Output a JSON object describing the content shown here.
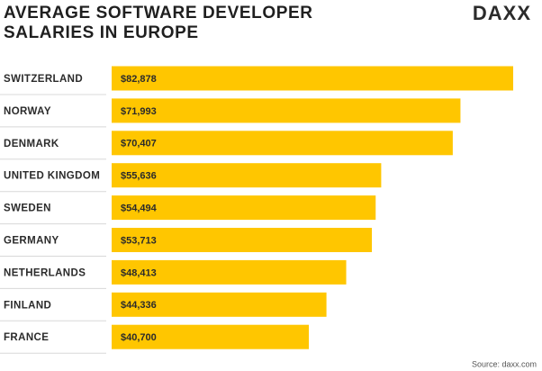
{
  "chart_data": {
    "type": "bar",
    "orientation": "horizontal",
    "title": "AVERAGE SOFTWARE DEVELOPER SALARIES IN EUROPE",
    "logo": "DAXX",
    "source": "Source: daxx.com",
    "categories": [
      "SWITZERLAND",
      "NORWAY",
      "DENMARK",
      "UNITED KINGDOM",
      "SWEDEN",
      "GERMANY",
      "NETHERLANDS",
      "FINLAND",
      "FRANCE"
    ],
    "values": [
      82878,
      71993,
      70407,
      55636,
      54494,
      53713,
      48413,
      44336,
      40700
    ],
    "value_labels": [
      "$82,878",
      "$71,993",
      "$70,407",
      "$55,636",
      "$54,494",
      "$53,713",
      "$48,413",
      "$44,336",
      "$40,700"
    ],
    "color": "#FFC600"
  }
}
